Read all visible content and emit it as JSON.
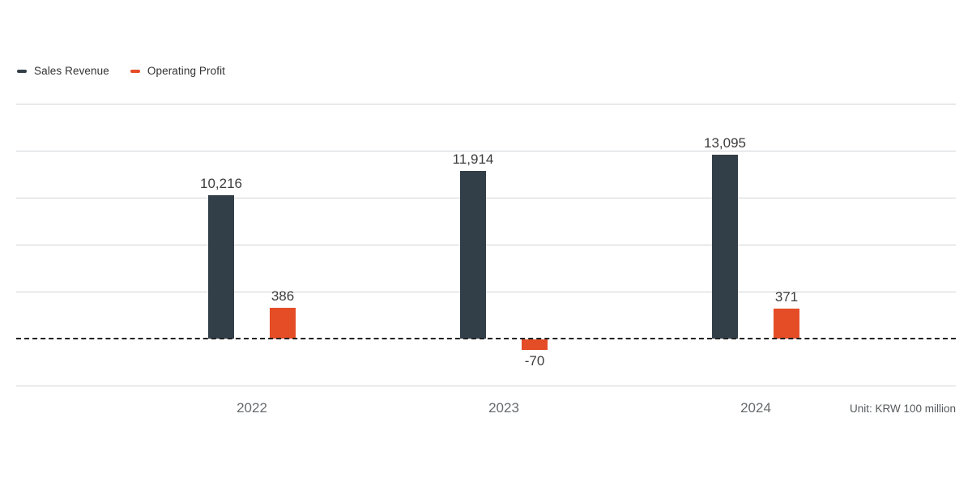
{
  "chart_data": {
    "type": "bar",
    "title": "",
    "categories": [
      "2022",
      "2023",
      "2024"
    ],
    "series": [
      {
        "name": "Sales Revenue",
        "color": "#333f48",
        "values": [
          10216,
          11914,
          13095
        ],
        "value_labels": [
          "10,216",
          "11,914",
          "13,095"
        ]
      },
      {
        "name": "Operating Profit",
        "color": "#e44d26",
        "values": [
          386,
          -70,
          371
        ],
        "value_labels": [
          "386",
          "-70",
          "371"
        ]
      }
    ],
    "unit_note": "Unit: KRW 100 million",
    "legend_position": "top-left",
    "grid": "horizontal-lines",
    "zero_line": "dashed",
    "y_axis_labels_shown": false,
    "gridlines_above_zero": 5,
    "gridlines_below_zero": 1,
    "gridline_colors": {
      "grid": "#d0d3d5",
      "zero": "#222222"
    }
  }
}
